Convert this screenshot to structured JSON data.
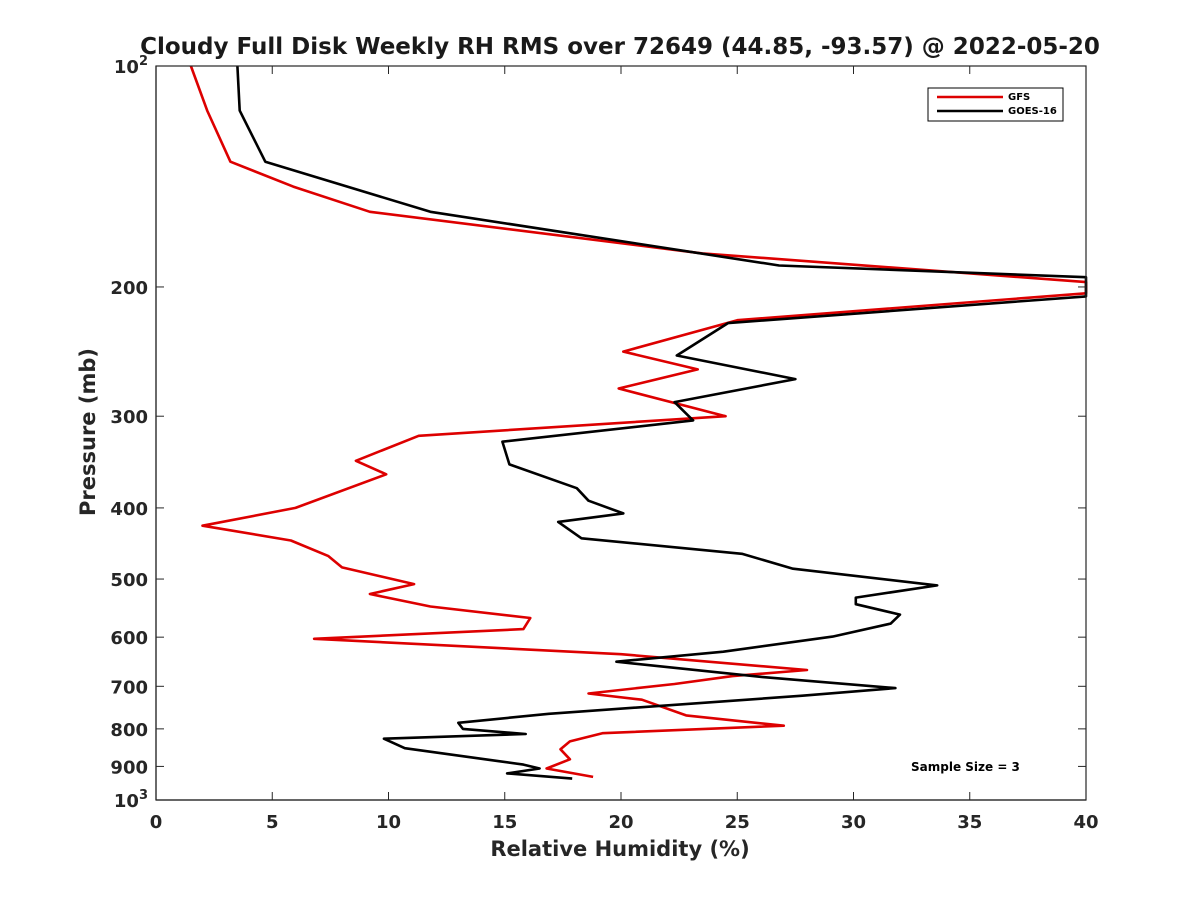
{
  "chart_data": {
    "type": "line",
    "title": "Cloudy Full Disk Weekly RH RMS over 72649 (44.85, -93.57) @ 2022-05-20",
    "xlabel": "Relative Humidity (%)",
    "ylabel": "Pressure (mb)",
    "xlim": [
      0,
      40
    ],
    "ylim": [
      100,
      1000
    ],
    "yscale": "log",
    "y_reversed": true,
    "x_ticks": [
      "0",
      "5",
      "10",
      "15",
      "20",
      "25",
      "30",
      "35",
      "40"
    ],
    "y_ticks": [
      {
        "value": 100,
        "base": "10",
        "exp": "2"
      },
      {
        "value": 200,
        "label": "200"
      },
      {
        "value": 300,
        "label": "300"
      },
      {
        "value": 400,
        "label": "400"
      },
      {
        "value": 500,
        "label": "500"
      },
      {
        "value": 600,
        "label": "600"
      },
      {
        "value": 700,
        "label": "700"
      },
      {
        "value": 800,
        "label": "800"
      },
      {
        "value": 900,
        "label": "900"
      },
      {
        "value": 1000,
        "base": "10",
        "exp": "3"
      }
    ],
    "grid": false,
    "legend_position": "top-right",
    "annotation": "Sample Size = 3",
    "series": [
      {
        "name": "GFS",
        "color": "#dd0000",
        "points": [
          [
            1.5,
            100
          ],
          [
            2.2,
            115
          ],
          [
            3.2,
            135
          ],
          [
            5.9,
            146
          ],
          [
            9.2,
            158
          ],
          [
            23.5,
            180
          ],
          [
            40,
            197
          ],
          [
            40,
            204
          ],
          [
            25.0,
            222
          ],
          [
            20.1,
            245
          ],
          [
            23.3,
            259
          ],
          [
            19.9,
            275
          ],
          [
            24.5,
            300
          ],
          [
            11.3,
            319
          ],
          [
            8.6,
            345
          ],
          [
            9.9,
            360
          ],
          [
            6.0,
            400
          ],
          [
            2.0,
            423
          ],
          [
            5.8,
            443
          ],
          [
            7.4,
            465
          ],
          [
            8.0,
            482
          ],
          [
            11.1,
            508
          ],
          [
            9.2,
            524
          ],
          [
            11.8,
            545
          ],
          [
            16.1,
            565
          ],
          [
            15.8,
            585
          ],
          [
            6.8,
            603
          ],
          [
            20.0,
            633
          ],
          [
            28.0,
            665
          ],
          [
            24.8,
            678
          ],
          [
            22.3,
            695
          ],
          [
            18.6,
            716
          ],
          [
            20.9,
            730
          ],
          [
            22.8,
            767
          ],
          [
            27.0,
            792
          ],
          [
            19.2,
            811
          ],
          [
            17.8,
            832
          ],
          [
            17.4,
            853
          ],
          [
            17.8,
            880
          ],
          [
            16.8,
            906
          ],
          [
            18.8,
            930
          ]
        ]
      },
      {
        "name": "GOES-16",
        "color": "#000000",
        "points": [
          [
            3.5,
            100
          ],
          [
            3.6,
            115
          ],
          [
            4.7,
            135
          ],
          [
            11.8,
            158
          ],
          [
            26.8,
            187
          ],
          [
            40,
            194
          ],
          [
            40,
            206
          ],
          [
            24.6,
            224
          ],
          [
            22.4,
            248
          ],
          [
            27.5,
            267
          ],
          [
            22.3,
            287
          ],
          [
            23.1,
            304
          ],
          [
            14.9,
            325
          ],
          [
            15.2,
            349
          ],
          [
            18.1,
            376
          ],
          [
            18.6,
            391
          ],
          [
            20.1,
            407
          ],
          [
            17.3,
            418
          ],
          [
            18.3,
            440
          ],
          [
            25.2,
            462
          ],
          [
            27.4,
            484
          ],
          [
            33.6,
            510
          ],
          [
            30.1,
            530
          ],
          [
            30.1,
            541
          ],
          [
            32.0,
            559
          ],
          [
            31.6,
            575
          ],
          [
            29.1,
            599
          ],
          [
            24.4,
            628
          ],
          [
            19.8,
            648
          ],
          [
            26.1,
            680
          ],
          [
            31.8,
            704
          ],
          [
            27.8,
            721
          ],
          [
            16.9,
            763
          ],
          [
            13.0,
            785
          ],
          [
            13.2,
            800
          ],
          [
            15.9,
            813
          ],
          [
            9.8,
            825
          ],
          [
            10.7,
            850
          ],
          [
            15.8,
            895
          ],
          [
            16.5,
            906
          ],
          [
            15.1,
            920
          ],
          [
            17.9,
            935
          ]
        ]
      }
    ]
  }
}
